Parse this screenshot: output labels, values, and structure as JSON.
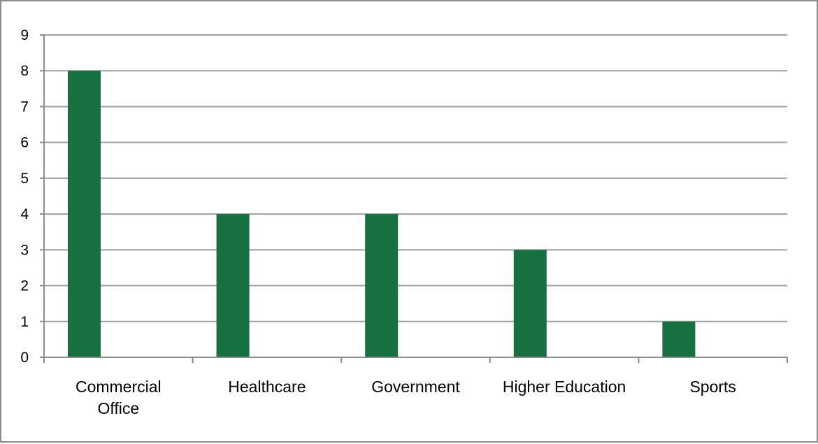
{
  "chart_data": {
    "type": "bar",
    "title": "",
    "xlabel": "",
    "ylabel": "",
    "categories": [
      [
        "Commercial",
        "Office"
      ],
      [
        "Healthcare"
      ],
      [
        "Government"
      ],
      [
        "Higher Education"
      ],
      [
        "Sports"
      ]
    ],
    "values": [
      8,
      4,
      4,
      3,
      1
    ],
    "ylim": [
      0,
      9
    ],
    "yticks": [
      0,
      1,
      2,
      3,
      4,
      5,
      6,
      7,
      8,
      9
    ],
    "grid": true,
    "legend": "none",
    "colors": {
      "bar": "#17703f",
      "grid": "#9e9e9e",
      "axis": "#8c8c8c"
    }
  }
}
